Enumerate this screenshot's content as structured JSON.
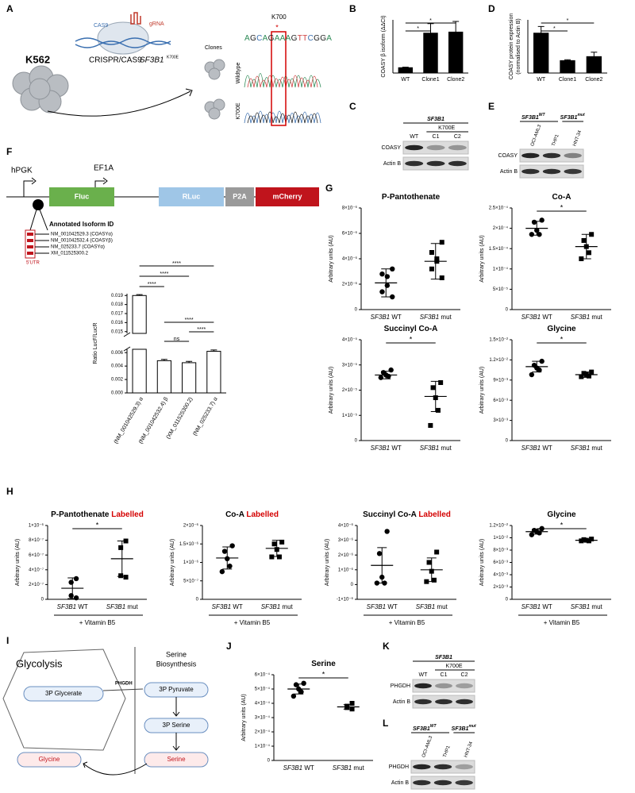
{
  "panel_labels": [
    "A",
    "B",
    "C",
    "D",
    "E",
    "F",
    "G",
    "H",
    "I",
    "J",
    "K",
    "L"
  ],
  "schematic_a": {
    "cell_line": "K562",
    "cas9": "CAS9",
    "grna": "gRNA",
    "method": "CRISPR/CAS9",
    "gene": "SF3B1",
    "mutation": "K700E",
    "clones": "Clones",
    "wildtype": "Wildtype",
    "mutant": "K700E",
    "site": "K700",
    "star": "*",
    "sequence": "AGCAGAAAGTTCGGA"
  },
  "construct_f": {
    "promoter1": "hPGK",
    "promoter2": "EF1A",
    "fluc": "Fluc",
    "rluc": "RLuc",
    "p2a": "P2A",
    "mcherry": "mCherry",
    "isoform_title": "Annotated Isoform ID",
    "isoforms": [
      "NM_001042529.3 (COASYα)",
      "NM_001042532.4 (COASYβ)",
      "NM_025233.7 (COASYα)",
      "XM_011525300.2"
    ],
    "utr": "5'UTR"
  },
  "blots": {
    "C": {
      "gene": "SF3B1",
      "mutant": "K700E",
      "lanes": [
        "WT",
        "C1",
        "C2"
      ],
      "rows": [
        "COASY",
        "Actin B"
      ]
    },
    "E": {
      "gene_wt": "SF3B1",
      "wt": "WT",
      "gene_mut": "SF3B1",
      "mut": "mut",
      "lanes": [
        "OCI-AML3",
        "THP1",
        "HNT-34"
      ],
      "rows": [
        "COASY",
        "Actin B"
      ]
    },
    "K": {
      "gene": "SF3B1",
      "mutant": "K700E",
      "lanes": [
        "WT",
        "C1",
        "C2"
      ],
      "rows": [
        "PHGDH",
        "Actin B"
      ]
    },
    "L": {
      "gene_wt": "SF3B1",
      "wt": "WT",
      "gene_mut": "SF3B1",
      "mut": "mut",
      "lanes": [
        "OCI-AML3",
        "THP1",
        "HNT-34"
      ],
      "rows": [
        "PHGDH",
        "Actin B"
      ]
    }
  },
  "diagram_i": {
    "glycolysis": "Glycolysis",
    "enzyme": "PHGDH",
    "pathway": [
      "Serine",
      "Biosynthesis"
    ],
    "nodes": [
      "3P Glycerate",
      "3P Pyruvate",
      "3P Serine",
      "Glycine",
      "Serine"
    ]
  },
  "chart_data": [
    {
      "type": "bar",
      "ylabel": "COASY β isoform (ΔΔCt)",
      "categories": [
        "WT",
        "Clone1",
        "Clone2"
      ],
      "values": [
        1,
        7.5,
        7.7
      ],
      "errors": [
        0.1,
        1.8,
        2.0
      ],
      "ylim": [
        0,
        10
      ],
      "color": "#000000",
      "significance": [
        "*",
        "*"
      ]
    },
    {
      "type": "bar",
      "ylabel": [
        "COASY protein expression",
        "(normalised to Actin B)"
      ],
      "categories": [
        "WT",
        "Clone1",
        "Clone2"
      ],
      "values": [
        0.9,
        0.28,
        0.37
      ],
      "errors": [
        0.15,
        0.02,
        0.1
      ],
      "ylim": [
        0,
        1.2
      ],
      "color": "#000000",
      "significance": [
        "*",
        "*"
      ]
    },
    {
      "type": "bar",
      "ylabel": "Ratio LucF/LucR",
      "categories": [
        "(NM_001042529.3) α",
        "(NM_001042532.4) β",
        "(XM_011525300.2)",
        "(NM_025233.7) α"
      ],
      "values": [
        0.019,
        0.0048,
        0.0045,
        0.0062
      ],
      "errors": [
        0.0001,
        0.0002,
        0.0002,
        0.0002
      ],
      "ylim": [
        0,
        0.0192
      ],
      "axis_break": [
        0.0065,
        0.0148
      ],
      "yticks": [
        {
          "value": 0,
          "label": "0.000"
        },
        0.002,
        0.004,
        0.006,
        0.015,
        0.016,
        0.017,
        0.018,
        0.019
      ],
      "color": "#ffffff",
      "significance": [
        "****",
        "****",
        "****",
        "****",
        "****",
        "ns"
      ]
    },
    {
      "type": "dot_plot",
      "title": "P-Pantothenate",
      "ylabel": "Arbitrary units (AU)",
      "categories": [
        "SF3B1 WT",
        "SF3B1 mut"
      ],
      "markers": [
        "circle",
        "square"
      ],
      "values": [
        [
          3.2e-06,
          2.8e-06,
          2.6e-06,
          1.9e-06,
          1.4e-06,
          1e-06
        ],
        [
          5.3e-06,
          4.5e-06,
          4e-06,
          3.8e-06,
          3.2e-06,
          2.5e-06
        ]
      ],
      "means": [
        2.1e-06,
        3.8e-06
      ],
      "errors": [
        1.1e-06,
        1.4e-06
      ],
      "ylim": [
        0,
        8e-06
      ],
      "yticks": [
        0,
        {
          "value": 2e-06,
          "label": "2×10⁻⁶"
        },
        {
          "value": 4e-06,
          "label": "4×10⁻⁶"
        },
        {
          "value": 6e-06,
          "label": "6×10⁻⁶"
        },
        {
          "value": 8e-06,
          "label": "8×10⁻⁶"
        }
      ],
      "color": "#000000"
    },
    {
      "type": "dot_plot",
      "title": "Co-A",
      "ylabel": "Arbitrary units (AU)",
      "categories": [
        "SF3B1 WT",
        "SF3B1 mut"
      ],
      "markers": [
        "circle",
        "square"
      ],
      "values": [
        [
          0.00022,
          0.000215,
          0.000195,
          0.000185,
          0.000185
        ],
        [
          0.000185,
          0.00017,
          0.000155,
          0.00014,
          0.000125
        ]
      ],
      "means": [
        0.0002,
        0.000155
      ],
      "errors": [
        1.7e-05,
        3e-05
      ],
      "ylim": [
        0,
        0.00025
      ],
      "yticks": [
        0,
        {
          "value": 5e-05,
          "label": "5×10⁻⁵"
        },
        {
          "value": 0.0001,
          "label": "1×10⁻⁴"
        },
        {
          "value": 0.00015,
          "label": "1.5×10⁻⁴"
        },
        {
          "value": 0.0002,
          "label": "2×10⁻⁴"
        },
        {
          "value": 0.00025,
          "label": "2.5×10⁻⁴"
        }
      ],
      "color": "#000000",
      "significance": "*"
    },
    {
      "type": "dot_plot",
      "title": "Succinyl Co-A",
      "ylabel": "Arbitrary units (AU)",
      "categories": [
        "SF3B1 WT",
        "SF3B1 mut"
      ],
      "markers": [
        "circle",
        "square"
      ],
      "values": [
        [
          2.8e-05,
          2.7e-05,
          2.6e-05,
          2.55e-05,
          2.5e-05
        ],
        [
          2.3e-05,
          2.1e-05,
          1.7e-05,
          1.2e-05,
          6e-06
        ]
      ],
      "means": [
        2.6e-05,
        1.75e-05
      ],
      "errors": [
        1.5e-06,
        6e-06
      ],
      "ylim": [
        0,
        4e-05
      ],
      "yticks": [
        0,
        {
          "value": 1e-05,
          "label": "1×10⁻⁵"
        },
        {
          "value": 2e-05,
          "label": "2×10⁻⁵"
        },
        {
          "value": 3e-05,
          "label": "3×10⁻⁵"
        },
        {
          "value": 4e-05,
          "label": "4×10⁻⁵"
        }
      ],
      "color": "#000000",
      "significance": "*"
    },
    {
      "type": "dot_plot",
      "title": "Glycine",
      "ylabel": "Arbitrary units (AU)",
      "categories": [
        "SF3B1 WT",
        "SF3B1 mut"
      ],
      "markers": [
        "circle",
        "square"
      ],
      "values": [
        [
          0.0118,
          0.0112,
          0.0108,
          0.0105,
          0.0098
        ],
        [
          0.0102,
          0.01,
          0.0098,
          0.0096,
          0.0095
        ]
      ],
      "means": [
        0.011,
        0.0098
      ],
      "errors": [
        0.0008,
        0.0004
      ],
      "ylim": [
        0,
        0.015
      ],
      "yticks": [
        0,
        {
          "value": 0.003,
          "label": "3×10⁻³"
        },
        {
          "value": 0.006,
          "label": "6×10⁻³"
        },
        {
          "value": 0.009,
          "label": "9×10⁻³"
        },
        {
          "value": 0.012,
          "label": "1.2×10⁻²"
        },
        {
          "value": 0.015,
          "label": "1.5×10⁻²"
        }
      ],
      "color": "#000000",
      "significance": "*"
    },
    {
      "type": "dot_plot",
      "title": "P-Pantothenate",
      "title_note": "Labelled",
      "ylabel": "Arbitrary units (AU)",
      "categories": [
        "SF3B1 WT",
        "SF3B1 mut"
      ],
      "group_label": "+ Vitamin B5",
      "markers": [
        "circle",
        "square"
      ],
      "values": [
        [
          2.8e-07,
          2.3e-07,
          5e-08,
          2e-08
        ],
        [
          7.9e-07,
          7e-07,
          3.2e-07,
          3e-07
        ]
      ],
      "means": [
        1.5e-07,
        5.5e-07
      ],
      "errors": [
        1.4e-07,
        2.4e-07
      ],
      "ylim": [
        0,
        1e-06
      ],
      "yticks": [
        0,
        {
          "value": 2e-07,
          "label": "2×10⁻⁷"
        },
        {
          "value": 4e-07,
          "label": "4×10⁻⁷"
        },
        {
          "value": 6e-07,
          "label": "6×10⁻⁷"
        },
        {
          "value": 8e-07,
          "label": "8×10⁻⁷"
        },
        {
          "value": 1e-06,
          "label": "1×10⁻⁶"
        }
      ],
      "color": "#000000",
      "significance": "*"
    },
    {
      "type": "dot_plot",
      "title": "Co-A",
      "title_note": "Labelled",
      "ylabel": "Arbitrary units (AU)",
      "categories": [
        "SF3B1 WT",
        "SF3B1 mut"
      ],
      "group_label": "+ Vitamin B5",
      "markers": [
        "circle",
        "square"
      ],
      "values": [
        [
          1.45e-06,
          1.3e-06,
          1.1e-06,
          9e-07,
          7.5e-07
        ],
        [
          1.55e-06,
          1.5e-06,
          1.35e-06,
          1.15e-06,
          1.15e-06
        ]
      ],
      "means": [
        1.12e-06,
        1.38e-06
      ],
      "errors": [
        3e-07,
        2.2e-07
      ],
      "ylim": [
        0,
        2e-06
      ],
      "yticks": [
        0,
        {
          "value": 5e-07,
          "label": "5×10⁻⁷"
        },
        {
          "value": 1e-06,
          "label": "1×10⁻⁶"
        },
        {
          "value": 1.5e-06,
          "label": "1.5×10⁻⁶"
        },
        {
          "value": 2e-06,
          "label": "2×10⁻⁶"
        }
      ],
      "color": "#000000"
    },
    {
      "type": "dot_plot",
      "title": "Succinyl Co-A",
      "title_note": "Labelled",
      "ylabel": "Arbitrary units (AU)",
      "categories": [
        "SF3B1 WT",
        "SF3B1 mut"
      ],
      "group_label": "+ Vitamin B5",
      "markers": [
        "circle",
        "square"
      ],
      "values": [
        [
          3.6e-06,
          2.1e-06,
          5e-07,
          1e-07,
          1e-07
        ],
        [
          2.2e-06,
          1.5e-06,
          9e-07,
          3e-07,
          2e-07
        ]
      ],
      "means": [
        1.3e-06,
        1e-06
      ],
      "errors": [
        1.2e-06,
        8e-07
      ],
      "ylim": [
        -1e-06,
        4e-06
      ],
      "yticks": [
        {
          "value": -1e-06,
          "label": "-1×10⁻⁶"
        },
        0,
        {
          "value": 1e-06,
          "label": "1×10⁻⁶"
        },
        {
          "value": 2e-06,
          "label": "2×10⁻⁶"
        },
        {
          "value": 3e-06,
          "label": "3×10⁻⁶"
        },
        {
          "value": 4e-06,
          "label": "4×10⁻⁶"
        }
      ],
      "color": "#000000"
    },
    {
      "type": "dot_plot",
      "title": "Glycine",
      "ylabel": "Arbitrary units (AU)",
      "categories": [
        "SF3B1 WT",
        "SF3B1 mut"
      ],
      "group_label": "+ Vitamin B5",
      "markers": [
        "circle",
        "square"
      ],
      "values": [
        [
          0.0115,
          0.0112,
          0.011,
          0.0108,
          0.0105
        ],
        [
          0.0098,
          0.0097,
          0.0096,
          0.0095,
          0.0095
        ]
      ],
      "means": [
        0.011,
        0.0096
      ],
      "errors": [
        0.0004,
        0.0002
      ],
      "ylim": [
        0,
        0.012
      ],
      "yticks": [
        0,
        {
          "value": 0.002,
          "label": "2×10⁻³"
        },
        {
          "value": 0.004,
          "label": "4×10⁻³"
        },
        {
          "value": 0.006,
          "label": "6×10⁻³"
        },
        {
          "value": 0.008,
          "label": "8×10⁻³"
        },
        {
          "value": 0.01,
          "label": "1×10⁻²"
        },
        {
          "value": 0.012,
          "label": "1.2×10⁻²"
        }
      ],
      "color": "#000000",
      "significance": "*"
    },
    {
      "type": "dot_plot",
      "title": "Serine",
      "ylabel": "Arbitrary units (AU)",
      "categories": [
        "SF3B1 WT",
        "SF3B1 mut"
      ],
      "markers": [
        "circle",
        "square"
      ],
      "values": [
        [
          0.00054,
          0.00053,
          0.0005,
          0.00048,
          0.00045
        ],
        [
          0.0004,
          0.00038,
          0.00037,
          0.00036
        ]
      ],
      "means": [
        0.0005,
        0.000375
      ],
      "errors": [
        3.5e-05,
        1.5e-05
      ],
      "ylim": [
        0,
        0.0006
      ],
      "yticks": [
        0,
        {
          "value": 0.0001,
          "label": "1×10⁻⁴"
        },
        {
          "value": 0.0002,
          "label": "2×10⁻⁴"
        },
        {
          "value": 0.0003,
          "label": "3×10⁻⁴"
        },
        {
          "value": 0.0004,
          "label": "4×10⁻⁴"
        },
        {
          "value": 0.0005,
          "label": "5×10⁻⁴"
        },
        {
          "value": 0.0006,
          "label": "6×10⁻⁴"
        }
      ],
      "color": "#000000",
      "significance": "*"
    }
  ]
}
